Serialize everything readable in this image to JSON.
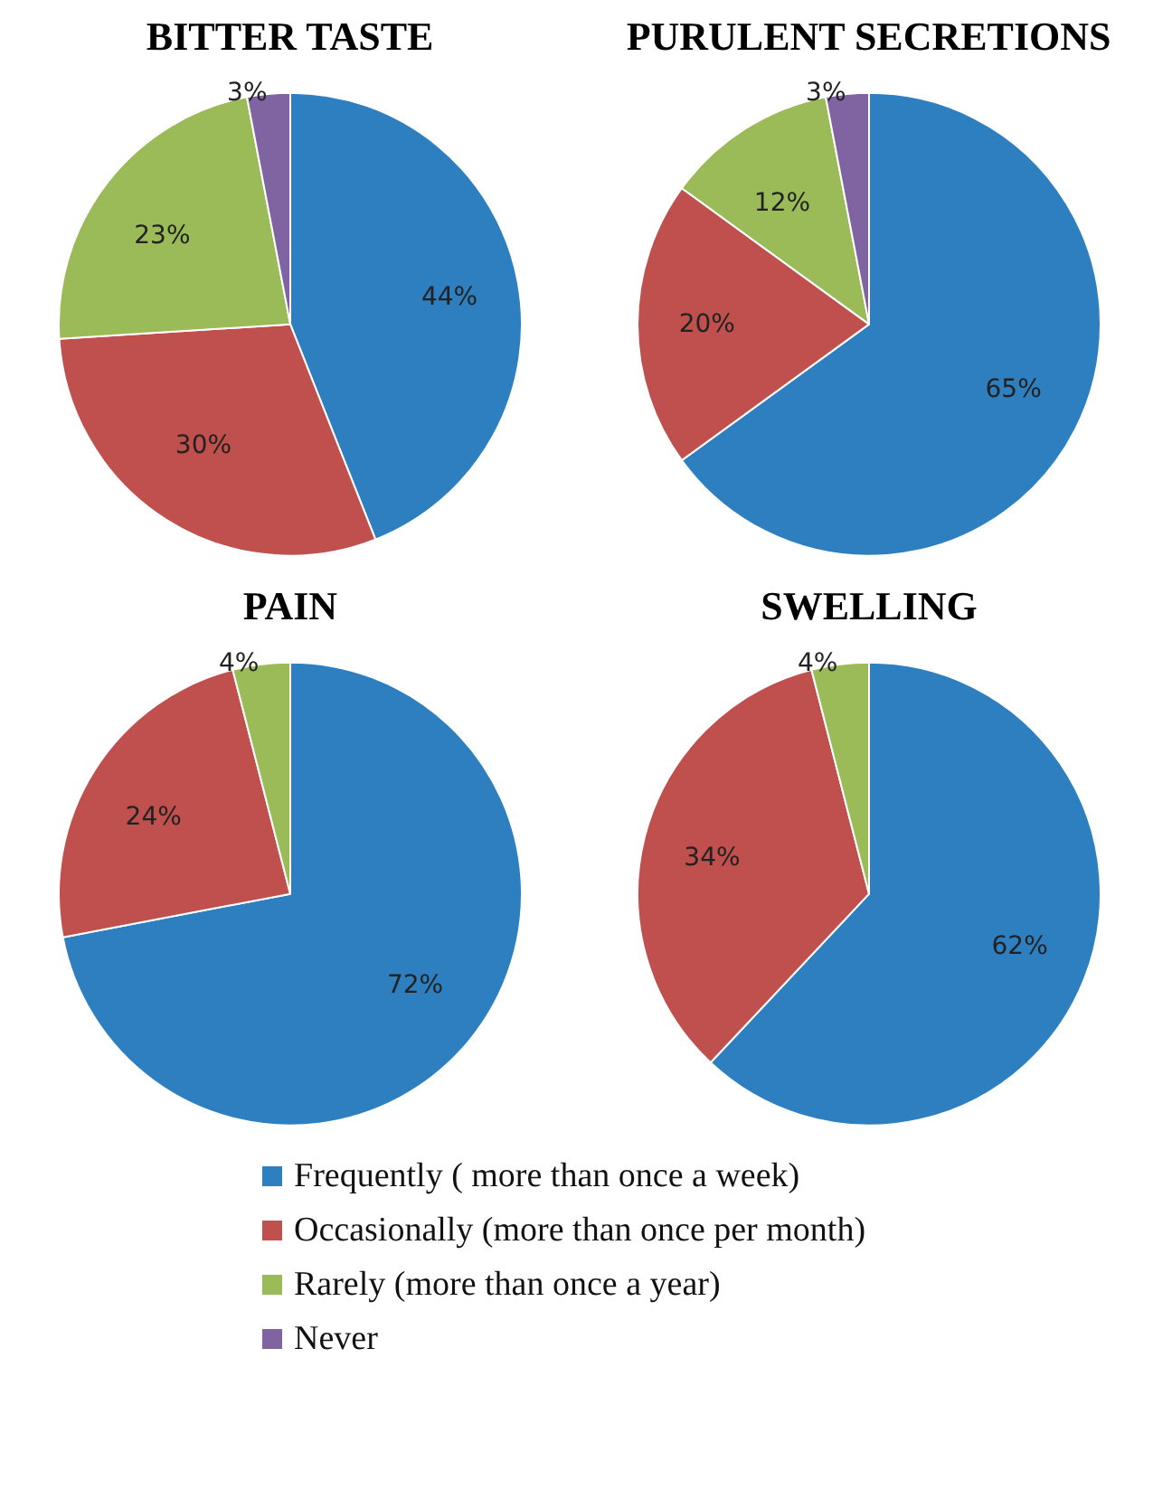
{
  "chart_data": [
    {
      "type": "pie",
      "title": "BITTER TASTE",
      "categories": [
        "Frequently ( more than once a week)",
        "Occasionally (more than once per month)",
        "Rarely (more than once a year)",
        "Never"
      ],
      "values": [
        44,
        30,
        23,
        3
      ],
      "colors": [
        "#2e7fbf",
        "#c0504d",
        "#9bbb59",
        "#8064a2"
      ],
      "value_labels": [
        "44%",
        "30%",
        "23%",
        "3%"
      ],
      "legend": "bottom"
    },
    {
      "type": "pie",
      "title": "PURULENT SECRETIONS",
      "categories": [
        null,
        null,
        null,
        null
      ],
      "values": [
        65,
        20,
        12,
        3
      ],
      "colors": [
        "#2e7fbf",
        "#c0504d",
        "#9bbb59",
        "#8064a2"
      ],
      "value_labels": [
        "65%",
        "20%",
        "12%",
        "3%"
      ]
    },
    {
      "type": "pie",
      "title": "PAIN",
      "categories": [
        null,
        null,
        null
      ],
      "values": [
        72,
        24,
        4
      ],
      "colors": [
        "#2e7fbf",
        "#c0504d",
        "#9bbb59"
      ],
      "value_labels": [
        "72%",
        "24%",
        "4%"
      ]
    },
    {
      "type": "pie",
      "title": "SWELLING",
      "categories": [
        null,
        null,
        null
      ],
      "values": [
        62,
        34,
        4
      ],
      "colors": [
        "#2e7fbf",
        "#c0504d",
        "#9bbb59"
      ],
      "value_labels": [
        "62%",
        "34%",
        "4%"
      ]
    }
  ]
}
